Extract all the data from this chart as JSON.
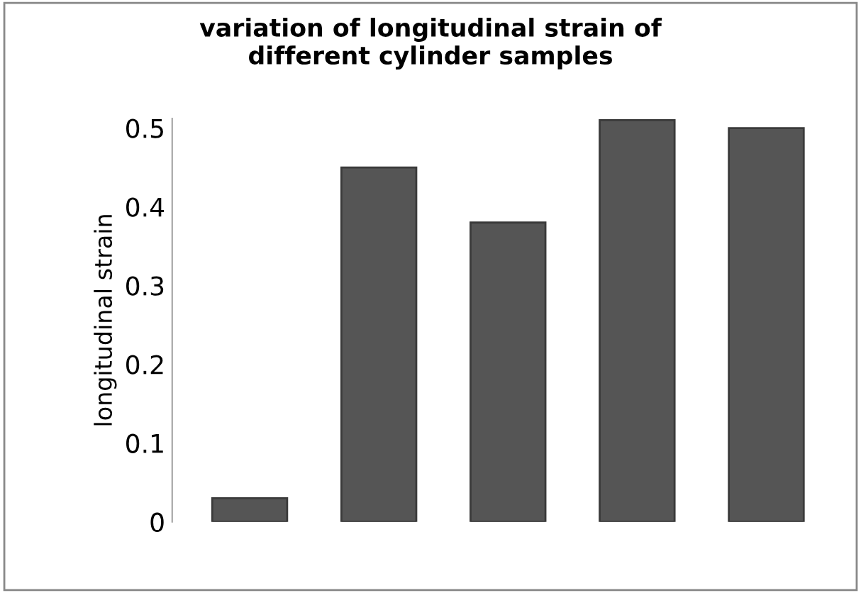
{
  "chart_data": {
    "type": "bar",
    "title": "variation of longitudinal strain of\ndifferent cylinder samples",
    "ylabel": "longitudinal strain",
    "categories": [
      null,
      null,
      null,
      null,
      null
    ],
    "values": [
      0.03,
      0.45,
      0.38,
      0.51,
      0.5
    ],
    "color": "#555555",
    "ylim": [
      0,
      0.512
    ],
    "yticks": [
      0,
      0.1,
      0.2,
      0.3,
      0.4,
      0.5
    ],
    "grid": false
  }
}
